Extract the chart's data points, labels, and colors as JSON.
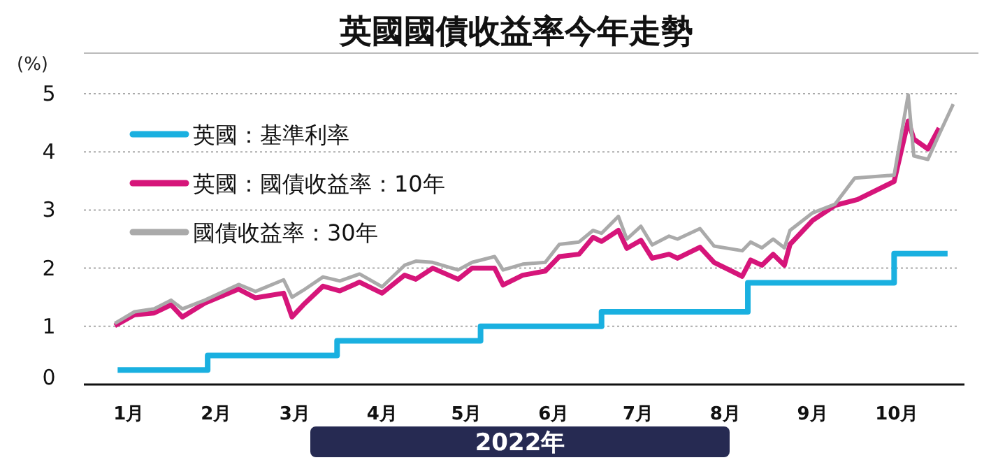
{
  "chart_data": {
    "type": "line",
    "title": "英國國債收益率今年走勢",
    "ylabel": "(%)",
    "xlabel": "2022年",
    "xlim": [
      "2021-12-16",
      "2022-10-25"
    ],
    "xticks": [
      {
        "value": "2022-01-01",
        "label": "1月"
      },
      {
        "value": "2022-02-01",
        "label": "2月"
      },
      {
        "value": "2022-03-01",
        "label": "3月"
      },
      {
        "value": "2022-04-01",
        "label": "4月"
      },
      {
        "value": "2022-05-01",
        "label": "5月"
      },
      {
        "value": "2022-06-01",
        "label": "6月"
      },
      {
        "value": "2022-07-01",
        "label": "7月"
      },
      {
        "value": "2022-08-01",
        "label": "8月"
      },
      {
        "value": "2022-09-01",
        "label": "9月"
      },
      {
        "value": "2022-10-01",
        "label": "10月"
      }
    ],
    "ylim": [
      0,
      5
    ],
    "yticks": [
      0,
      1,
      2,
      3,
      4,
      5
    ],
    "grid": "y",
    "legend": "top left",
    "marker": "none",
    "line_style": "solid",
    "series": [
      {
        "name": "英國：基準利率",
        "type": "step",
        "color": "#1ab0e0",
        "x": [
          "2021-12-28",
          "2022-01-29",
          "2022-03-16",
          "2022-05-06",
          "2022-06-18",
          "2022-08-09",
          "2022-09-30",
          "2022-10-19"
        ],
        "values": [
          0.25,
          0.5,
          0.75,
          1,
          1.25,
          1.75,
          2.25,
          2.25
        ]
      },
      {
        "name": "英國：國債收益率：10年",
        "color": "#d6157a",
        "x": [
          "2021-12-27",
          "2022-01-03",
          "2022-01-10",
          "2022-01-16",
          "2022-01-20",
          "2022-01-28",
          "2022-02-09",
          "2022-02-15",
          "2022-02-25",
          "2022-02-28",
          "2022-03-04",
          "2022-03-11",
          "2022-03-17",
          "2022-03-24",
          "2022-04-01",
          "2022-04-09",
          "2022-04-13",
          "2022-04-19",
          "2022-04-28",
          "2022-05-03",
          "2022-05-11",
          "2022-05-14",
          "2022-05-21",
          "2022-05-29",
          "2022-06-03",
          "2022-06-10",
          "2022-06-15",
          "2022-06-18",
          "2022-06-24",
          "2022-06-27",
          "2022-07-02",
          "2022-07-06",
          "2022-07-12",
          "2022-07-15",
          "2022-07-23",
          "2022-07-28",
          "2022-08-07",
          "2022-08-10",
          "2022-08-14",
          "2022-08-18",
          "2022-08-22",
          "2022-08-24",
          "2022-09-01",
          "2022-09-09",
          "2022-09-17",
          "2022-09-30",
          "2022-10-05",
          "2022-10-07",
          "2022-10-12",
          "2022-10-16"
        ],
        "values": [
          1.01,
          1.2,
          1.23,
          1.37,
          1.16,
          1.4,
          1.64,
          1.49,
          1.57,
          1.16,
          1.37,
          1.69,
          1.61,
          1.76,
          1.57,
          1.88,
          1.81,
          2.0,
          1.81,
          2.0,
          2.0,
          1.71,
          1.88,
          1.95,
          2.2,
          2.24,
          2.53,
          2.46,
          2.65,
          2.34,
          2.48,
          2.17,
          2.24,
          2.17,
          2.36,
          2.1,
          1.86,
          2.14,
          2.05,
          2.24,
          2.05,
          2.41,
          2.82,
          3.08,
          3.18,
          3.49,
          4.53,
          4.22,
          4.05,
          4.41
        ]
      },
      {
        "name": "國債收益率：30年",
        "color": "#aaaaaa",
        "x": [
          "2021-12-27",
          "2022-01-03",
          "2022-01-10",
          "2022-01-16",
          "2022-01-20",
          "2022-01-28",
          "2022-02-09",
          "2022-02-15",
          "2022-02-25",
          "2022-02-28",
          "2022-03-04",
          "2022-03-11",
          "2022-03-17",
          "2022-03-24",
          "2022-04-01",
          "2022-04-09",
          "2022-04-13",
          "2022-04-19",
          "2022-04-28",
          "2022-05-03",
          "2022-05-11",
          "2022-05-14",
          "2022-05-21",
          "2022-05-29",
          "2022-06-03",
          "2022-06-10",
          "2022-06-15",
          "2022-06-18",
          "2022-06-24",
          "2022-06-27",
          "2022-07-02",
          "2022-07-06",
          "2022-07-12",
          "2022-07-15",
          "2022-07-23",
          "2022-07-28",
          "2022-08-07",
          "2022-08-10",
          "2022-08-14",
          "2022-08-18",
          "2022-08-22",
          "2022-08-24",
          "2022-09-01",
          "2022-09-09",
          "2022-09-16",
          "2022-09-30",
          "2022-10-05",
          "2022-10-07",
          "2022-10-12",
          "2022-10-16",
          "2022-10-21"
        ],
        "values": [
          1.05,
          1.25,
          1.3,
          1.45,
          1.3,
          1.45,
          1.72,
          1.6,
          1.8,
          1.5,
          1.62,
          1.85,
          1.78,
          1.9,
          1.68,
          2.05,
          2.12,
          2.1,
          1.97,
          2.1,
          2.2,
          1.97,
          2.07,
          2.1,
          2.41,
          2.45,
          2.65,
          2.6,
          2.89,
          2.5,
          2.72,
          2.4,
          2.55,
          2.5,
          2.68,
          2.38,
          2.3,
          2.45,
          2.35,
          2.5,
          2.35,
          2.65,
          2.95,
          3.1,
          3.55,
          3.6,
          4.98,
          3.93,
          3.87,
          4.3,
          4.82
        ]
      }
    ]
  }
}
